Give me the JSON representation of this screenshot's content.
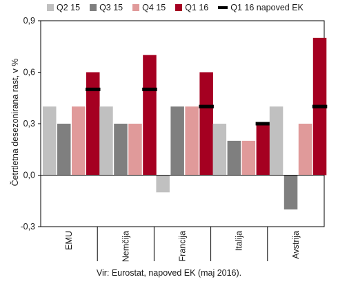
{
  "chart_data": {
    "type": "bar",
    "categories": [
      "EMU",
      "Nemčija",
      "Francija",
      "Italija",
      "Avstrija"
    ],
    "series": [
      {
        "name": "Q2 15",
        "color": "#c0c0c0",
        "values": [
          0.4,
          0.4,
          -0.1,
          0.3,
          0.4
        ]
      },
      {
        "name": "Q3 15",
        "color": "#7f7f7f",
        "values": [
          0.3,
          0.3,
          0.4,
          0.2,
          -0.2
        ]
      },
      {
        "name": "Q4 15",
        "color": "#e09a9a",
        "values": [
          0.4,
          0.3,
          0.4,
          0.2,
          0.3
        ]
      },
      {
        "name": "Q1 16",
        "color": "#a50021",
        "values": [
          0.6,
          0.7,
          0.6,
          0.3,
          0.8
        ]
      }
    ],
    "marker_series": {
      "name": "Q1 16 napoved EK",
      "color": "#000000",
      "values": [
        0.5,
        0.5,
        0.4,
        0.3,
        0.4
      ]
    },
    "ylabel": "Četrtletna desezonirana rast, v %",
    "ylim": [
      -0.3,
      0.9
    ],
    "yticks": [
      "-0,3",
      "0,0",
      "0,3",
      "0,6",
      "0,9"
    ],
    "source": "Vir: Eurostat, napoved EK (maj 2016)."
  }
}
